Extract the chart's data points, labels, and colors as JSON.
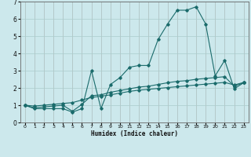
{
  "title": "",
  "xlabel": "Humidex (Indice chaleur)",
  "background_color": "#cce8ec",
  "grid_color": "#aacccc",
  "line_color": "#1a6b6b",
  "x_values": [
    0,
    1,
    2,
    3,
    4,
    5,
    6,
    7,
    8,
    9,
    10,
    11,
    12,
    13,
    14,
    15,
    16,
    17,
    18,
    19,
    20,
    21,
    22,
    23
  ],
  "line1_y": [
    1.0,
    0.8,
    0.8,
    0.8,
    0.8,
    0.6,
    0.8,
    3.0,
    0.8,
    2.2,
    2.6,
    3.2,
    3.3,
    3.3,
    4.8,
    5.7,
    6.5,
    6.5,
    6.7,
    5.7,
    2.7,
    3.6,
    1.95,
    2.3
  ],
  "line2_y": [
    1.0,
    0.85,
    0.9,
    0.95,
    1.0,
    0.65,
    1.05,
    1.55,
    1.6,
    1.75,
    1.85,
    1.95,
    2.05,
    2.1,
    2.2,
    2.3,
    2.38,
    2.42,
    2.5,
    2.55,
    2.6,
    2.65,
    2.1,
    2.3
  ],
  "line3_y": [
    1.0,
    0.95,
    1.0,
    1.05,
    1.1,
    1.15,
    1.3,
    1.45,
    1.52,
    1.6,
    1.7,
    1.8,
    1.87,
    1.92,
    1.97,
    2.02,
    2.07,
    2.12,
    2.17,
    2.22,
    2.27,
    2.32,
    2.17,
    2.32
  ],
  "ylim": [
    0,
    7
  ],
  "xlim": [
    -0.5,
    23.5
  ],
  "yticks": [
    0,
    1,
    2,
    3,
    4,
    5,
    6,
    7
  ],
  "xticks": [
    0,
    1,
    2,
    3,
    4,
    5,
    6,
    7,
    8,
    9,
    10,
    11,
    12,
    13,
    14,
    15,
    16,
    17,
    18,
    19,
    20,
    21,
    22,
    23
  ],
  "figsize": [
    3.2,
    2.0
  ],
  "dpi": 100
}
